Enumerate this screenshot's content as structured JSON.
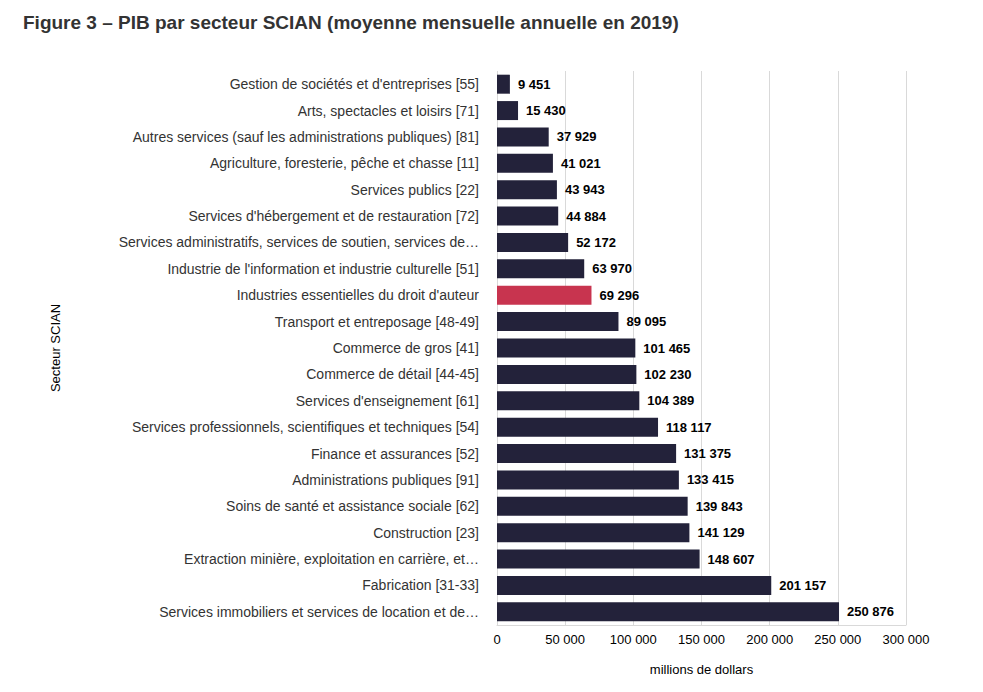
{
  "chart_data": {
    "type": "bar",
    "orientation": "horizontal",
    "title": "Figure 3 – PIB par secteur SCIAN (moyenne mensuelle annuelle en 2019)",
    "x_label": "millions de dollars",
    "y_label": "Secteur SCIAN",
    "categories": [
      "Gestion de sociétés et d'entreprises [55]",
      "Arts, spectacles et loisirs [71]",
      "Autres services (sauf les administrations publiques) [81]",
      "Agriculture, foresterie, pêche et chasse [11]",
      "Services publics [22]",
      "Services d'hébergement et de restauration [72]",
      "Services administratifs, services de soutien, services de…",
      "Industrie de l'information et industrie culturelle [51]",
      "Industries essentielles du droit d'auteur",
      "Transport et entreposage [48-49]",
      "Commerce de gros [41]",
      "Commerce de détail [44-45]",
      "Services d'enseignement [61]",
      "Services professionnels, scientifiques et techniques [54]",
      "Finance et assurances [52]",
      "Administrations publiques [91]",
      "Soins de santé et assistance sociale [62]",
      "Construction [23]",
      "Extraction minière, exploitation en carrière, et…",
      "Fabrication [31-33]",
      "Services immobiliers et services de location et de…"
    ],
    "values": [
      9451,
      15430,
      37929,
      41021,
      43943,
      44884,
      52172,
      63970,
      69296,
      89095,
      101465,
      102230,
      104389,
      118117,
      131375,
      133415,
      139843,
      141129,
      148607,
      201157,
      250876
    ],
    "value_labels": [
      "9 451",
      "15 430",
      "37 929",
      "41 021",
      "43 943",
      "44 884",
      "52 172",
      "63 970",
      "69 296",
      "89 095",
      "101 465",
      "102 230",
      "104 389",
      "118 117",
      "131 375",
      "133 415",
      "139 843",
      "141 129",
      "148 607",
      "201 157",
      "250 876"
    ],
    "colors": [
      "#23223a",
      "#23223a",
      "#23223a",
      "#23223a",
      "#23223a",
      "#23223a",
      "#23223a",
      "#23223a",
      "#c8344f",
      "#23223a",
      "#23223a",
      "#23223a",
      "#23223a",
      "#23223a",
      "#23223a",
      "#23223a",
      "#23223a",
      "#23223a",
      "#23223a",
      "#23223a",
      "#23223a"
    ],
    "xlim": [
      0,
      300000
    ],
    "xticks": [
      0,
      {
        "value": 50000,
        "label": "50 000"
      },
      {
        "value": 100000,
        "label": "100 000"
      },
      {
        "value": 150000,
        "label": "150 000"
      },
      {
        "value": 200000,
        "label": "200 000"
      },
      {
        "value": 250000,
        "label": "250 000"
      },
      {
        "value": 300000,
        "label": "300 000"
      }
    ],
    "grid": true,
    "data_labels": true
  }
}
